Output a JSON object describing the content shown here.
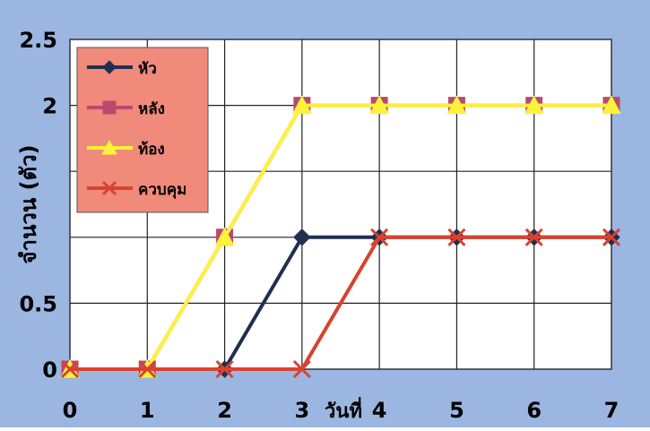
{
  "chart_data": {
    "type": "line",
    "title": "",
    "xlabel": "วันที่",
    "ylabel": "จำนวน (ตัว)",
    "x": [
      0,
      1,
      2,
      3,
      4,
      5,
      6,
      7
    ],
    "xlim": [
      0,
      7
    ],
    "ylim": [
      0,
      2.5
    ],
    "ytick_labels": [
      "0",
      "0.5",
      "",
      "",
      "2",
      "2.5"
    ],
    "yticks": [
      0,
      0.5,
      1,
      1.5,
      2,
      2.5
    ],
    "grid": true,
    "legend_position": "top-left",
    "series": [
      {
        "name": "หัว",
        "values": [
          0,
          0,
          0,
          1,
          1,
          1,
          1,
          1
        ],
        "color": "#1f2f4f",
        "marker": "diamond"
      },
      {
        "name": "หลัง",
        "values": [
          0,
          0,
          1,
          2,
          2,
          2,
          2,
          2
        ],
        "color": "#b94a6e",
        "marker": "square"
      },
      {
        "name": "ท้อง",
        "values": [
          0,
          0,
          1,
          2,
          2,
          2,
          2,
          2
        ],
        "color": "#fff23a",
        "marker": "triangle"
      },
      {
        "name": "ควบคุม",
        "values": [
          0,
          0,
          0,
          0,
          1,
          1,
          1,
          1
        ],
        "color": "#d9422e",
        "marker": "x"
      }
    ],
    "colors": {
      "background": "#9bb6e0",
      "plot_area": "#ffffff",
      "legend_background": "#f08a7a",
      "grid": "#222222"
    }
  }
}
